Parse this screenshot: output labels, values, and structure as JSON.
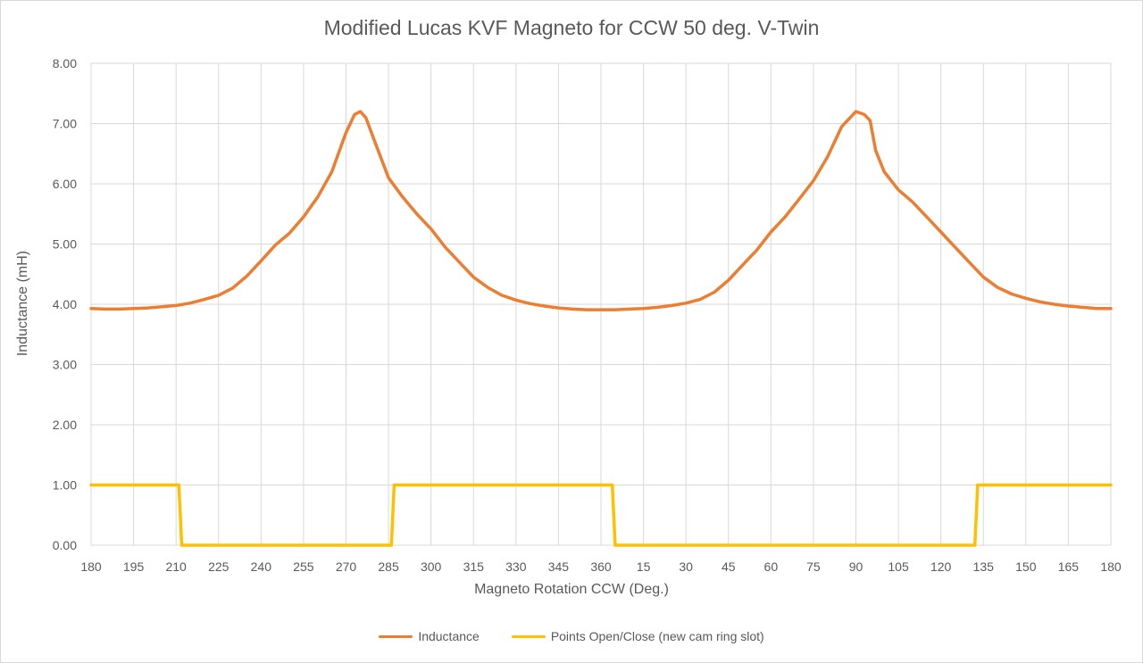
{
  "chart_data": {
    "type": "line",
    "title": "Modified Lucas KVF Magneto for CCW 50 deg. V-Twin",
    "xlabel": "Magneto Rotation CCW (Deg.)",
    "ylabel": "Inductance (mH)",
    "ylim": [
      0,
      8
    ],
    "yticks": [
      "0.00",
      "1.00",
      "2.00",
      "3.00",
      "4.00",
      "5.00",
      "6.00",
      "7.00",
      "8.00"
    ],
    "xticks": [
      "180",
      "195",
      "210",
      "225",
      "240",
      "255",
      "270",
      "285",
      "300",
      "315",
      "330",
      "345",
      "360",
      "15",
      "30",
      "45",
      "60",
      "75",
      "90",
      "105",
      "120",
      "135",
      "150",
      "165",
      "180"
    ],
    "x_continuous_range": [
      180,
      540
    ],
    "grid": {
      "vertical": true,
      "horizontal": true
    },
    "legend_position": "bottom",
    "series": [
      {
        "name": "Inductance",
        "color": "#ED7D31",
        "x": [
          180,
          185,
          190,
          195,
          200,
          205,
          210,
          215,
          220,
          225,
          230,
          235,
          240,
          245,
          250,
          255,
          260,
          265,
          270,
          273,
          275,
          277,
          280,
          285,
          290,
          295,
          300,
          305,
          310,
          315,
          320,
          325,
          330,
          335,
          340,
          345,
          350,
          355,
          360,
          365,
          370,
          375,
          380,
          385,
          390,
          395,
          400,
          405,
          410,
          415,
          420,
          425,
          430,
          435,
          440,
          445,
          450,
          453,
          455,
          457,
          460,
          465,
          470,
          475,
          480,
          485,
          490,
          495,
          500,
          505,
          510,
          515,
          520,
          525,
          530,
          535,
          540
        ],
        "values": [
          3.93,
          3.92,
          3.92,
          3.93,
          3.94,
          3.96,
          3.98,
          4.02,
          4.08,
          4.15,
          4.27,
          4.47,
          4.72,
          4.98,
          5.18,
          5.45,
          5.78,
          6.2,
          6.85,
          7.15,
          7.2,
          7.1,
          6.72,
          6.1,
          5.78,
          5.5,
          5.25,
          4.95,
          4.7,
          4.45,
          4.28,
          4.15,
          4.07,
          4.01,
          3.97,
          3.94,
          3.92,
          3.91,
          3.91,
          3.91,
          3.92,
          3.93,
          3.95,
          3.98,
          4.02,
          4.08,
          4.2,
          4.4,
          4.65,
          4.9,
          5.2,
          5.45,
          5.75,
          6.05,
          6.45,
          6.95,
          7.2,
          7.15,
          7.05,
          6.55,
          6.2,
          5.9,
          5.7,
          5.45,
          5.2,
          4.95,
          4.7,
          4.45,
          4.28,
          4.17,
          4.1,
          4.04,
          4.0,
          3.97,
          3.95,
          3.93,
          3.93
        ]
      },
      {
        "name": "Points Open/Close (new cam ring slot)",
        "color": "#FFC000",
        "x": [
          180,
          211,
          212,
          286,
          287,
          364,
          365,
          492,
          493,
          540
        ],
        "values": [
          1,
          1,
          0,
          0,
          1,
          1,
          0,
          0,
          1,
          1
        ]
      }
    ]
  }
}
